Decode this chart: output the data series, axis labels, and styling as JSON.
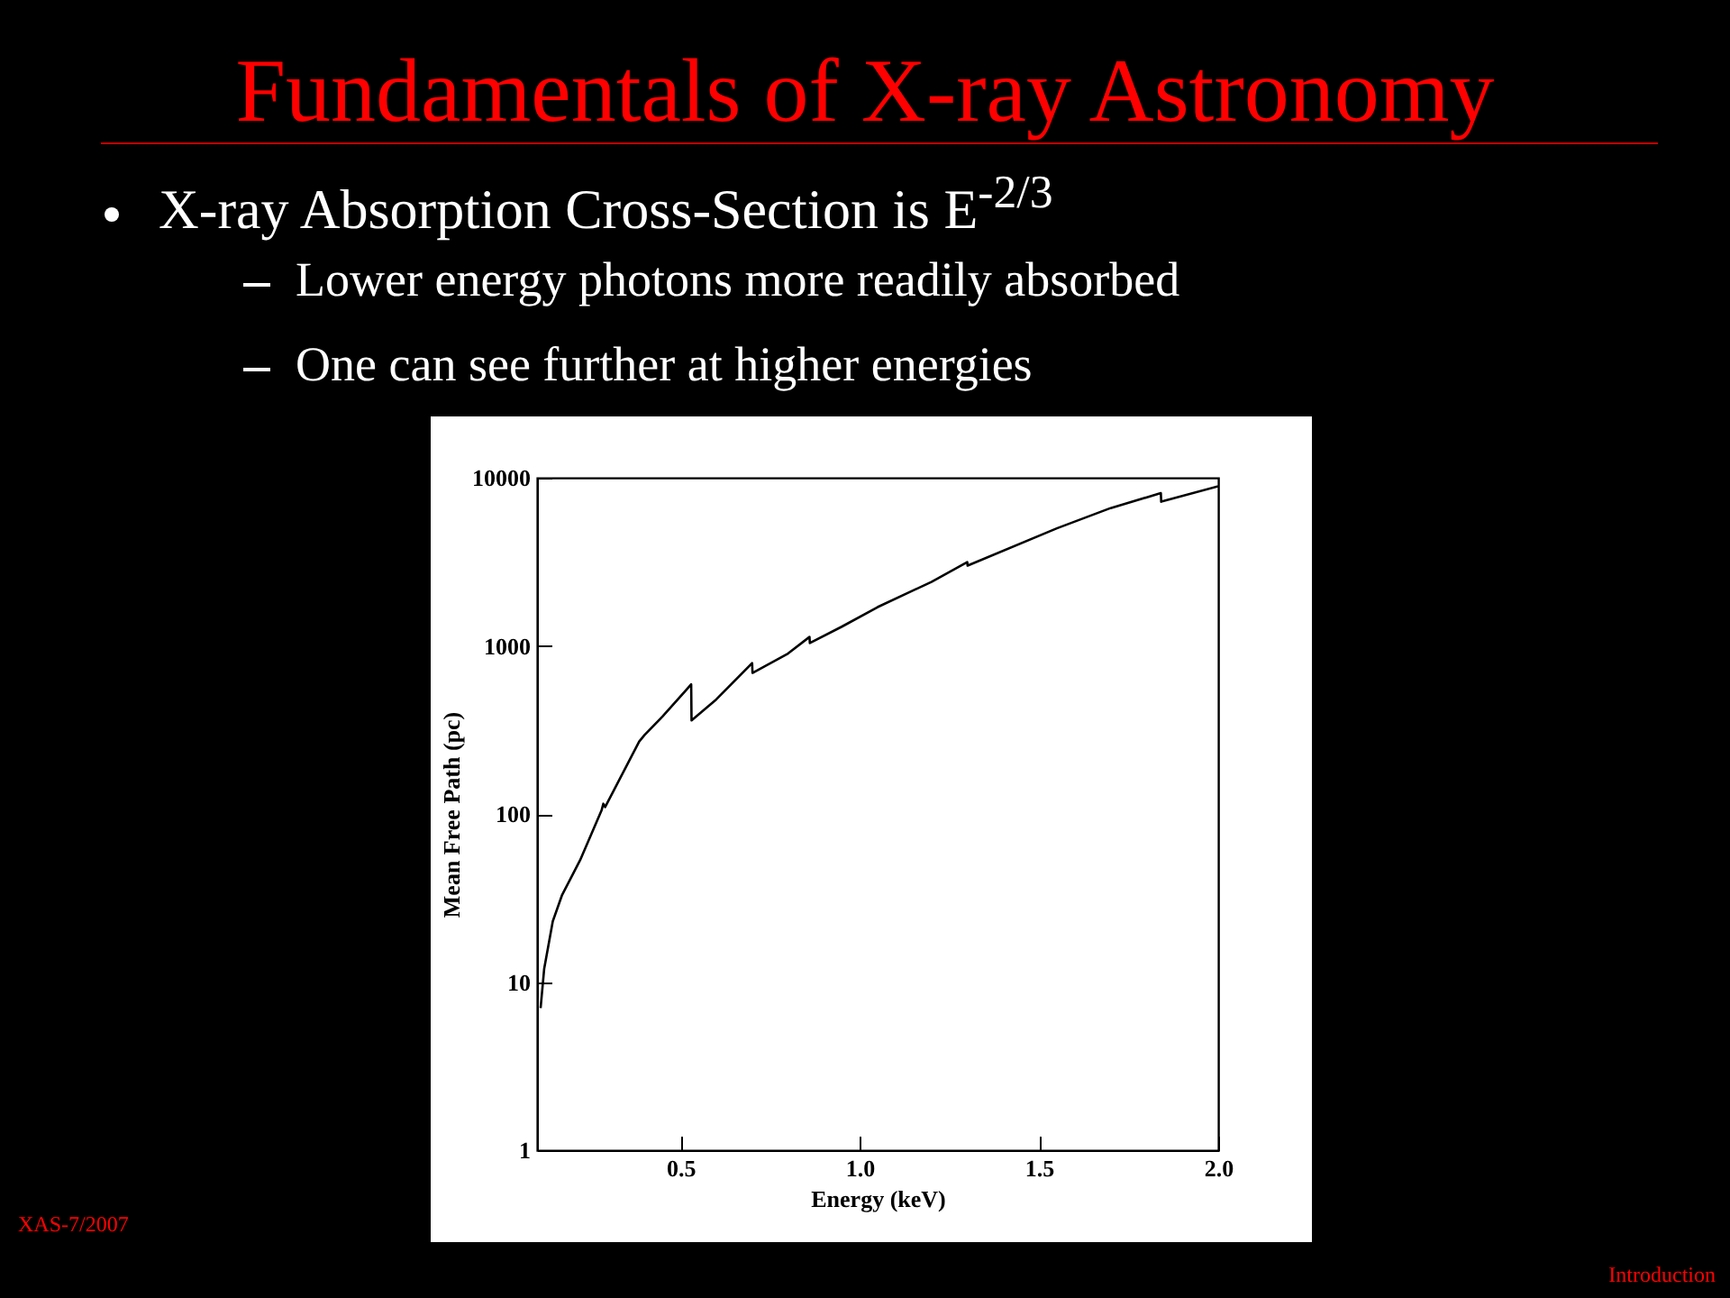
{
  "chart_data": {
    "type": "line",
    "title": "Fundamentals of X-ray Astronomy",
    "annotations": [
      "X-ray Absorption Cross-Section is E$^{-2/3}$",
      "Lower energy photons more readily absorbed",
      "One can see further at higher energies",
      "XAS-7/2007",
      "Introduction"
    ],
    "xlabel": "Energy (keV)",
    "ylabel": "Mean Free Path (pc)",
    "x": [
      0.11,
      0.12,
      0.144,
      0.17,
      0.22,
      0.28,
      0.285,
      0.29,
      0.385,
      0.4,
      0.45,
      0.53,
      0.531,
      0.6,
      0.7,
      0.701,
      0.8,
      0.86,
      0.861,
      0.95,
      1.05,
      1.2,
      1.3,
      1.301,
      1.55,
      1.7,
      1.84,
      1.841,
      2.0
    ],
    "series": [
      {
        "color": "#000000",
        "values": [
          7,
          12,
          23,
          33,
          53,
          105,
          115,
          110,
          270,
          295,
          380,
          590,
          360,
          480,
          790,
          690,
          900,
          1130,
          1040,
          1300,
          1700,
          2400,
          3150,
          3000,
          5000,
          6600,
          8100,
          7200,
          8900
        ]
      }
    ],
    "xlim": [
      0.1,
      2.0
    ],
    "xticks": [
      0.5,
      {
        "value": 1,
        "label": "1.0"
      },
      1.5,
      {
        "value": 2,
        "label": "2.0"
      }
    ],
    "ylim": [
      1,
      10000
    ],
    "yticks": [
      1,
      10,
      100,
      1000,
      10000
    ],
    "log": "y",
    "grid": false,
    "marker": "none",
    "line_style": "solid"
  }
}
